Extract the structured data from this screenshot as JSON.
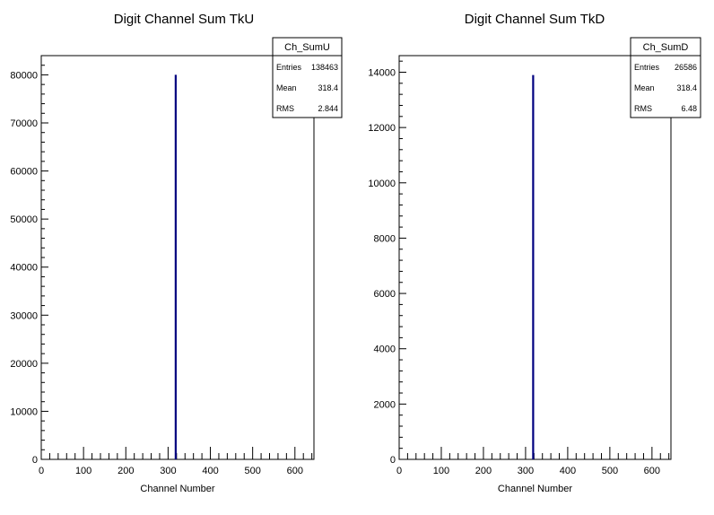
{
  "chart_data": [
    {
      "type": "bar",
      "title": "Digit Channel Sum TkU",
      "xlabel": "Channel Number",
      "ylabel": "",
      "xlim": [
        0,
        645
      ],
      "ylim": [
        0,
        84000
      ],
      "x_ticks": [
        0,
        100,
        200,
        300,
        400,
        500,
        600
      ],
      "y_ticks": [
        0,
        10000,
        20000,
        30000,
        40000,
        50000,
        60000,
        70000,
        80000
      ],
      "bins": [
        {
          "x": 318,
          "value": 80000
        }
      ],
      "bar_color": "#000080",
      "grid": false,
      "stats": {
        "name": "Ch_SumU",
        "rows": [
          {
            "label": "Entries",
            "value": "138463"
          },
          {
            "label": "Mean",
            "value": "318.4"
          },
          {
            "label": "RMS",
            "value": "2.844"
          }
        ]
      }
    },
    {
      "type": "bar",
      "title": "Digit Channel Sum TkD",
      "xlabel": "Channel Number",
      "ylabel": "",
      "xlim": [
        0,
        645
      ],
      "ylim": [
        0,
        14600
      ],
      "x_ticks": [
        0,
        100,
        200,
        300,
        400,
        500,
        600
      ],
      "y_ticks": [
        0,
        2000,
        4000,
        6000,
        8000,
        10000,
        12000,
        14000
      ],
      "bins": [
        {
          "x": 318,
          "value": 13900
        }
      ],
      "bar_color": "#000080",
      "grid": false,
      "stats": {
        "name": "Ch_SumD",
        "rows": [
          {
            "label": "Entries",
            "value": "26586"
          },
          {
            "label": "Mean",
            "value": "318.4"
          },
          {
            "label": "RMS",
            "value": "6.48"
          }
        ]
      }
    }
  ]
}
